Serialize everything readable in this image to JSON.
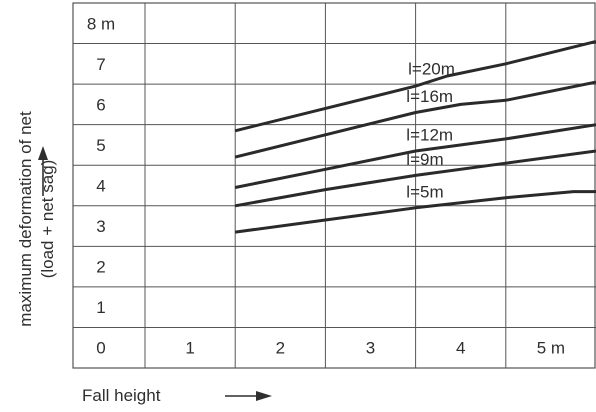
{
  "chart_data": {
    "type": "line",
    "title": "",
    "xlabel": "Fall height",
    "ylabel": "maximum deformation of net (load + net sag)",
    "ylabel_lines": [
      "maximum deformation of net",
      "(load + net sag)"
    ],
    "x_tick_labels": [
      "0",
      "1",
      "2",
      "3",
      "4",
      "5 m"
    ],
    "y_tick_labels": [
      "0",
      "1",
      "2",
      "3",
      "4",
      "5",
      "6",
      "7",
      "8 m"
    ],
    "xlim": [
      0,
      5
    ],
    "ylim": [
      0,
      8
    ],
    "grid": true,
    "series": [
      {
        "name": "l=20m",
        "x": [
          1,
          2,
          3,
          3.35,
          4,
          5
        ],
        "y": [
          4.85,
          5.4,
          5.95,
          6.2,
          6.5,
          7.05
        ]
      },
      {
        "name": "l=16m",
        "x": [
          1,
          2,
          3,
          3.5,
          4,
          5
        ],
        "y": [
          4.2,
          4.75,
          5.3,
          5.5,
          5.6,
          6.05
        ]
      },
      {
        "name": "l=12m",
        "x": [
          1,
          2,
          3,
          4,
          5
        ],
        "y": [
          3.45,
          3.9,
          4.35,
          4.65,
          5.0
        ]
      },
      {
        "name": "l=9m",
        "x": [
          1,
          2,
          3,
          4,
          5
        ],
        "y": [
          3.0,
          3.4,
          3.75,
          4.05,
          4.35
        ]
      },
      {
        "name": "l=5m",
        "x": [
          1,
          2,
          3,
          4,
          4.75,
          5
        ],
        "y": [
          2.35,
          2.65,
          2.95,
          3.2,
          3.35,
          3.35
        ]
      }
    ],
    "line_color": "#2a2a2a",
    "grid_color": "#555555"
  }
}
